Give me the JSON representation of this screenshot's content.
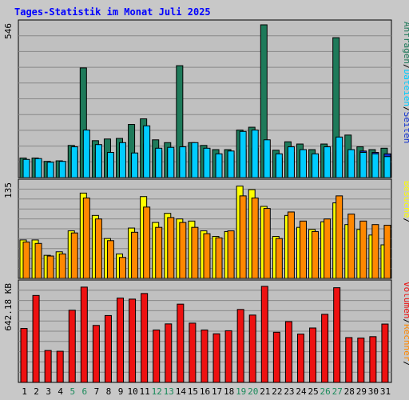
{
  "chart_data": {
    "type": "bar",
    "title": "Tages-Statistik im Monat Juli 2025",
    "categories": [
      "1",
      "2",
      "3",
      "4",
      "5",
      "6",
      "7",
      "8",
      "9",
      "10",
      "11",
      "12",
      "13",
      "14",
      "15",
      "16",
      "17",
      "18",
      "19",
      "20",
      "21",
      "22",
      "23",
      "24",
      "25",
      "26",
      "27",
      "28",
      "29",
      "30",
      "31"
    ],
    "weekend_days": [
      "5",
      "6",
      "12",
      "13",
      "19",
      "20",
      "26",
      "27"
    ],
    "colors": {
      "title": "#0000ff",
      "weekend_label": "#1a8a5a",
      "weekday_label": "#000000",
      "anfragen": "#1e7a5a",
      "dateien": "#00ccff",
      "seiten": "#1030d0",
      "besuche": "#ffff00",
      "rechner": "#ff8800",
      "volumen": "#ee1111"
    },
    "panels": [
      {
        "id": "top",
        "max_label": "546",
        "ylim": [
          0,
          546
        ],
        "legend": [
          {
            "text": "Anfragen",
            "color": "#1e7a5a"
          },
          {
            "text": "/",
            "color": "#000000"
          },
          {
            "text": "Dateien",
            "color": "#00ccff"
          },
          {
            "text": "/",
            "color": "#000000"
          },
          {
            "text": "Seiten",
            "color": "#1030d0"
          }
        ],
        "series": [
          {
            "name": "Anfragen",
            "key": "anfragen",
            "values": [
              70,
              70,
              58,
              60,
              115,
              392,
              132,
              138,
              140,
              190,
              210,
              135,
              125,
              400,
              125,
              115,
              100,
              100,
              170,
              180,
              546,
              98,
              128,
              120,
              100,
              120,
              500,
              152,
              110,
              100,
              105
            ]
          },
          {
            "name": "Dateien",
            "key": "dateien",
            "values": [
              65,
              68,
              55,
              58,
              110,
              170,
              118,
              90,
              125,
              88,
              185,
              105,
              108,
              110,
              125,
              105,
              85,
              95,
              165,
              170,
              135,
              85,
              110,
              100,
              85,
              110,
              145,
              100,
              90,
              85,
              75
            ]
          },
          {
            "name": "Seiten",
            "key": "seiten",
            "values": [
              60,
              60,
              48,
              50,
              95,
              100,
              90,
              85,
              110,
              70,
              120,
              95,
              100,
              90,
              100,
              95,
              75,
              80,
              100,
              105,
              100,
              70,
              90,
              80,
              75,
              90,
              95,
              80,
              95,
              90,
              85
            ]
          }
        ]
      },
      {
        "id": "middle",
        "max_label": "135",
        "ylim": [
          0,
          135
        ],
        "legend": [
          {
            "text": "Besuche",
            "color": "#ffff00"
          },
          {
            "text": "/",
            "color": "#000000"
          }
        ],
        "series": [
          {
            "name": "Besuche",
            "key": "besuche",
            "values": [
              55,
              55,
              33,
              38,
              68,
              122,
              90,
              57,
              35,
              72,
              117,
              80,
              93,
              85,
              82,
              68,
              60,
              67,
              132,
              127,
              103,
              60,
              90,
              73,
              70,
              81,
              108,
              77,
              70,
              62,
              48
            ]
          },
          {
            "name": "Rechner",
            "key": "rechner",
            "values": [
              52,
              50,
              32,
              35,
              65,
              115,
              85,
              54,
              30,
              66,
              102,
              73,
              87,
              80,
              73,
              64,
              58,
              68,
              118,
              115,
              100,
              57,
              95,
              82,
              67,
              85,
              118,
              92,
              82,
              77,
              76
            ]
          }
        ]
      },
      {
        "id": "bottom",
        "max_label": "642.18 KB",
        "ylim": [
          0,
          642.18
        ],
        "legend": [
          {
            "text": "Volumen",
            "color": "#ee1111"
          },
          {
            "text": "/",
            "color": "#000000"
          },
          {
            "text": "Rechner",
            "color": "#ff8800"
          },
          {
            "text": "/",
            "color": "#000000"
          }
        ],
        "series": [
          {
            "name": "Volumen",
            "key": "volumen",
            "values": [
              355,
              572,
              210,
              205,
              475,
              627,
              375,
              440,
              555,
              548,
              585,
              345,
              385,
              515,
              390,
              345,
              320,
              340,
              480,
              443,
              632,
              330,
              400,
              318,
              358,
              448,
              623,
              295,
              292,
              301,
              384
            ]
          }
        ]
      }
    ],
    "grid": true
  }
}
